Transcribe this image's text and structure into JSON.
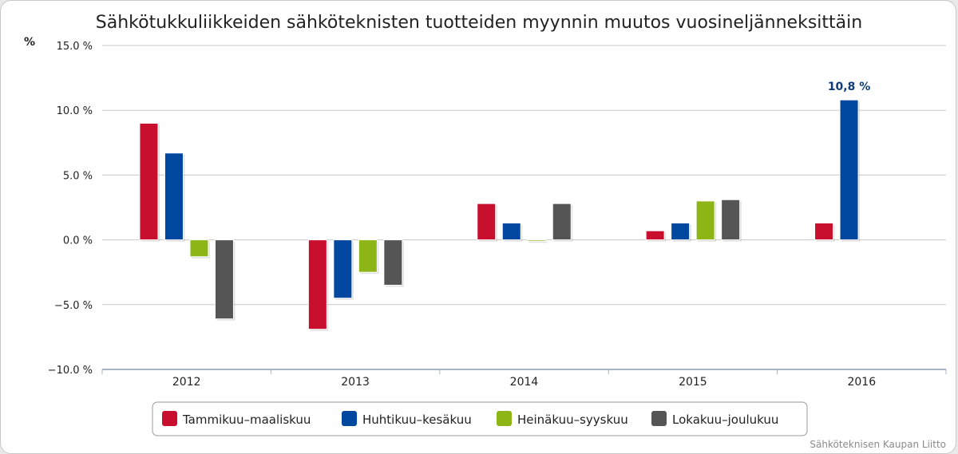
{
  "chart_data": {
    "type": "bar",
    "title": "Sähkötukkuliikkeiden sähköteknisten tuotteiden myynnin muutos vuosineljänneksittäin",
    "ylabel": "%",
    "ylim": [
      -10,
      15
    ],
    "yticks": [
      15,
      10,
      5,
      0,
      -5,
      -10
    ],
    "ytick_labels": [
      "15.0 %",
      "10.0 %",
      "5.0 %",
      "0.0 %",
      "−5.0 %",
      "−10.0 %"
    ],
    "categories": [
      "2012",
      "2013",
      "2014",
      "2015",
      "2016"
    ],
    "series": [
      {
        "name": "Tammikuu–maaliskuu",
        "color": "#c8102e",
        "values": [
          9.0,
          -6.9,
          2.8,
          0.7,
          1.3
        ]
      },
      {
        "name": "Huhtikuu–kesäkuu",
        "color": "#0047a0",
        "values": [
          6.7,
          -4.5,
          1.3,
          1.3,
          10.8
        ]
      },
      {
        "name": "Heinäkuu–syyskuu",
        "color": "#8db516",
        "values": [
          -1.3,
          -2.5,
          -0.1,
          3.0,
          null
        ]
      },
      {
        "name": "Lokakuu–joulukuu",
        "color": "#555555",
        "values": [
          -6.1,
          -3.5,
          2.8,
          3.1,
          null
        ]
      }
    ],
    "annotations": [
      {
        "series": 1,
        "category": 4,
        "text": "10,8 %"
      }
    ],
    "legend": "bottom-center",
    "grid": true
  },
  "credit": "Sähköteknisen Kaupan Liitto"
}
